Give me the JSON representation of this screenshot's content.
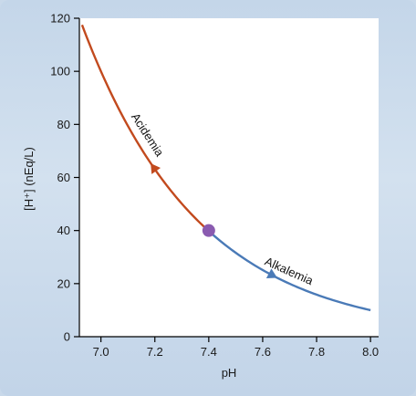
{
  "chart_data": {
    "type": "line",
    "title": "",
    "xlabel": "pH",
    "ylabel": "[H⁺] (nEq/L)",
    "xlim": [
      6.92,
      8.03
    ],
    "ylim": [
      0,
      120
    ],
    "xticks": [
      "7.0",
      "7.2",
      "7.4",
      "7.6",
      "7.8",
      "8.0"
    ],
    "yticks": [
      "0",
      "20",
      "40",
      "60",
      "80",
      "100",
      "120"
    ],
    "grid": false,
    "series": [
      {
        "name": "Acidemia",
        "color": "#c24a1e",
        "x": [
          6.93,
          7.0,
          7.1,
          7.2,
          7.3,
          7.4
        ],
        "y": [
          117.5,
          100.0,
          79.4,
          63.1,
          50.1,
          39.8
        ]
      },
      {
        "name": "Alkalemia",
        "color": "#4a7ab7",
        "x": [
          7.4,
          7.5,
          7.6,
          7.7,
          7.8,
          7.9,
          8.0
        ],
        "y": [
          39.8,
          31.6,
          25.1,
          20.0,
          15.8,
          12.6,
          7.5
        ]
      }
    ],
    "marker_point": {
      "x": 7.4,
      "y": 40,
      "color": "#8a5bb0"
    }
  }
}
